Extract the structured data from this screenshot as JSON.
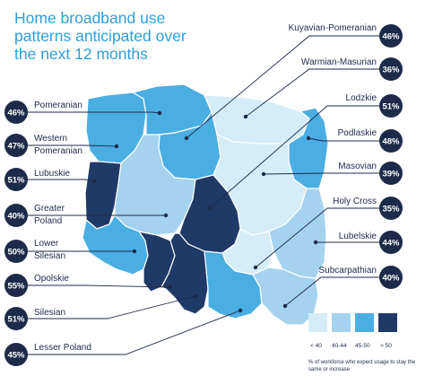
{
  "title": "Home broadband use patterns anticipated over the next 12 months",
  "colors": {
    "below_40": "#d5edf9",
    "40_44": "#a5d3ef",
    "45_50": "#4aaee3",
    "above_50": "#203a68",
    "navy": "#1e2a4a",
    "accent": "#2f9fd8"
  },
  "legend": {
    "items": [
      {
        "label": "< 40",
        "color": "#d5edf9"
      },
      {
        "label": "40-44",
        "color": "#a5d3ef"
      },
      {
        "label": "45-50",
        "color": "#4aaee3"
      },
      {
        "label": "> 50",
        "color": "#203a68"
      }
    ],
    "note": "% of workforce who expect usage to stay the same or increase"
  },
  "regions": [
    {
      "name": "Pomeranian",
      "value": "46%"
    },
    {
      "name": "Western Pomeranian",
      "value": "47%"
    },
    {
      "name": "Lubuskie",
      "value": "51%"
    },
    {
      "name": "Greater Poland",
      "value": "40%"
    },
    {
      "name": "Lower Silesian",
      "value": "50%"
    },
    {
      "name": "Opolskie",
      "value": "55%"
    },
    {
      "name": "Silesian",
      "value": "51%"
    },
    {
      "name": "Lesser Poland",
      "value": "45%"
    },
    {
      "name": "Kuyavian-Pomeranian",
      "value": "46%"
    },
    {
      "name": "Warmian-Masurian",
      "value": "36%"
    },
    {
      "name": "Lodzkie",
      "value": "51%"
    },
    {
      "name": "Podlaskie",
      "value": "48%"
    },
    {
      "name": "Masovian",
      "value": "39%"
    },
    {
      "name": "Holy Cross",
      "value": "35%"
    },
    {
      "name": "Lubelskie",
      "value": "44%"
    },
    {
      "name": "Subcarpathian",
      "value": "40%"
    }
  ]
}
